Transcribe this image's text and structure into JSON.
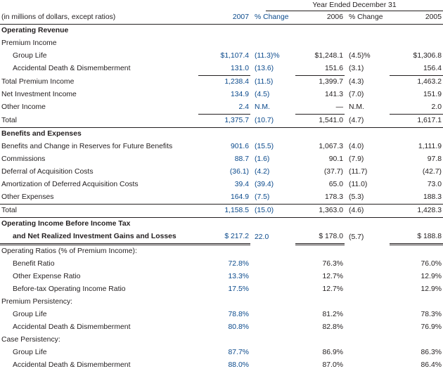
{
  "header": {
    "period": "Year Ended December 31",
    "units": "(in millions of dollars, except ratios)",
    "col_2007": "2007",
    "col_chg1": "% Change",
    "col_2006": "2006",
    "col_chg2": "% Change",
    "col_2005": "2005"
  },
  "op_rev": {
    "title": "Operating Revenue"
  },
  "premium_income": {
    "label": "Premium Income"
  },
  "group_life": {
    "label": "Group Life",
    "v2007": "$1,107.4",
    "c1": "(11.3)%",
    "v2006": "$1,248.1",
    "c2": "(4.5)%",
    "v2005": "$1,306.8"
  },
  "add": {
    "label": "Accidental Death & Dismemberment",
    "v2007": "131.0",
    "c1": "(13.6)",
    "v2006": "151.6",
    "c2": "(3.1)",
    "v2005": "156.4"
  },
  "total_premium": {
    "label": "Total Premium Income",
    "v2007": "1,238.4",
    "c1": "(11.5)",
    "v2006": "1,399.7",
    "c2": "(4.3)",
    "v2005": "1,463.2"
  },
  "net_inv": {
    "label": "Net Investment Income",
    "v2007": "134.9",
    "c1": "(4.5)",
    "v2006": "141.3",
    "c2": "(7.0)",
    "v2005": "151.9"
  },
  "other_income": {
    "label": "Other Income",
    "v2007": "2.4",
    "c1": "N.M.",
    "v2006": "—",
    "c2": "N.M.",
    "v2005": "2.0"
  },
  "total_rev": {
    "label": "Total",
    "v2007": "1,375.7",
    "c1": "(10.7)",
    "v2006": "1,541.0",
    "c2": "(4.7)",
    "v2005": "1,617.1"
  },
  "ben_exp": {
    "title": "Benefits and Expenses"
  },
  "benefits": {
    "label": "Benefits and Change in Reserves for Future Benefits",
    "v2007": "901.6",
    "c1": "(15.5)",
    "v2006": "1,067.3",
    "c2": "(4.0)",
    "v2005": "1,111.9"
  },
  "commissions": {
    "label": "Commissions",
    "v2007": "88.7",
    "c1": "(1.6)",
    "v2006": "90.1",
    "c2": "(7.9)",
    "v2005": "97.8"
  },
  "deferral": {
    "label": "Deferral of Acquisition Costs",
    "v2007": "(36.1)",
    "c1": "(4.2)",
    "v2006": "(37.7)",
    "c2": "(11.7)",
    "v2005": "(42.7)"
  },
  "amort": {
    "label": "Amortization of Deferred Acquisition Costs",
    "v2007": "39.4",
    "c1": "(39.4)",
    "v2006": "65.0",
    "c2": "(11.0)",
    "v2005": "73.0"
  },
  "other_exp": {
    "label": "Other Expenses",
    "v2007": "164.9",
    "c1": "(7.5)",
    "v2006": "178.3",
    "c2": "(5.3)",
    "v2005": "188.3"
  },
  "total_exp": {
    "label": "Total",
    "v2007": "1,158.5",
    "c1": "(15.0)",
    "v2006": "1,363.0",
    "c2": "(4.6)",
    "v2005": "1,428.3"
  },
  "opinc": {
    "label1": "Operating Income Before Income Tax",
    "label2": "and Net Realized Investment Gains and Losses",
    "v2007": "$  217.2",
    "c1": "22.0",
    "v2006": "$  178.0",
    "c2": "(5.7)",
    "v2005": "$  188.8"
  },
  "op_ratios": {
    "label": "Operating Ratios (% of Premium Income):"
  },
  "benefit_ratio": {
    "label": "Benefit Ratio",
    "v2007": "72.8%",
    "v2006": "76.3%",
    "v2005": "76.0%"
  },
  "other_exp_ratio": {
    "label": "Other Expense Ratio",
    "v2007": "13.3%",
    "v2006": "12.7%",
    "v2005": "12.9%"
  },
  "bt_ratio": {
    "label": "Before-tax Operating Income Ratio",
    "v2007": "17.5%",
    "v2006": "12.7%",
    "v2005": "12.9%"
  },
  "prem_persist": {
    "label": "Premium Persistency:"
  },
  "pp_gl": {
    "label": "Group Life",
    "v2007": "78.8%",
    "v2006": "81.2%",
    "v2005": "78.3%"
  },
  "pp_add": {
    "label": "Accidental Death & Dismemberment",
    "v2007": "80.8%",
    "v2006": "82.8%",
    "v2005": "76.9%"
  },
  "case_persist": {
    "label": "Case Persistency:"
  },
  "cp_gl": {
    "label": "Group Life",
    "v2007": "87.7%",
    "v2006": "86.9%",
    "v2005": "86.3%"
  },
  "cp_add": {
    "label": "Accidental Death & Dismemberment",
    "v2007": "88.0%",
    "v2006": "87.0%",
    "v2005": "86.4%"
  }
}
